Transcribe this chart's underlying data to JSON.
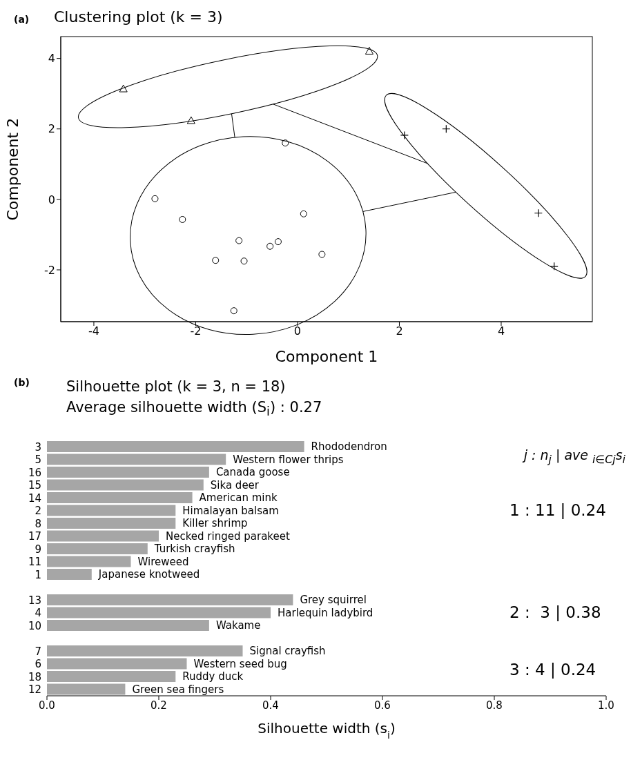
{
  "chart_data": [
    {
      "type": "scatter",
      "title": "Clustering plot (k = 3)",
      "xlabel": "Component 1",
      "ylabel": "Component 2",
      "annotations": [
        "(a)"
      ],
      "xlim": [
        -4.65,
        5.79
      ],
      "ylim": [
        -3.47,
        4.62
      ],
      "xticks": [
        -4,
        -2,
        0,
        2,
        4
      ],
      "yticks": [
        -2,
        0,
        2,
        4
      ],
      "grid": false,
      "legend": false,
      "series": [
        {
          "color": "#000000",
          "marker": "triangle",
          "x": [
            -3.42,
            -2.09,
            1.41
          ],
          "values": [
            3.14,
            2.24,
            4.21
          ]
        },
        {
          "color": "#000000",
          "marker": "cross",
          "x": [
            2.1,
            2.92,
            4.73,
            5.04
          ],
          "values": [
            1.82,
            2.0,
            -0.39,
            -1.9
          ]
        },
        {
          "color": "#000000",
          "marker": "circle",
          "x": [
            -2.8,
            -2.26,
            -0.24,
            0.12,
            -1.15,
            -1.61,
            -1.05,
            -0.54,
            -0.38,
            0.48,
            -1.25
          ],
          "values": [
            0.02,
            -0.57,
            1.6,
            -0.41,
            -1.17,
            -1.73,
            -1.75,
            -1.33,
            -1.2,
            -1.56,
            -3.16
          ]
        }
      ]
    },
    {
      "type": "bar",
      "orientation": "horizontal",
      "title": "Silhouette plot (k = 3, n = 18)",
      "subtitle": "Average silhouette width (S$_{i}$) : 0.27",
      "xlabel": "Silhouette width (s$_{i}$)",
      "categories": [
        "3",
        "5",
        "16",
        "15",
        "14",
        "2",
        "8",
        "17",
        "9",
        "11",
        "1",
        null,
        "13",
        "4",
        "10",
        null,
        "7",
        "6",
        "18",
        "12"
      ],
      "values": [
        0.46,
        0.32,
        0.29,
        0.28,
        0.26,
        0.23,
        0.23,
        0.2,
        0.18,
        0.15,
        0.08,
        null,
        0.44,
        0.4,
        0.29,
        null,
        0.35,
        0.25,
        0.23,
        0.14
      ],
      "color": "#a6a6a6",
      "xlim": [
        0,
        1
      ],
      "xticks": [
        {
          "value": 0,
          "label": "0.0"
        },
        0.2,
        0.4,
        0.6,
        0.8,
        {
          "value": 1,
          "label": "1.0"
        }
      ],
      "grid": false,
      "legend": false,
      "annotations": [
        "(b)",
        "j : n$_{j}$ | ave $_{i∈Cj}$s$_{i}$",
        "1 : 11 | 0.24",
        "2 :  3 | 0.38",
        "3 : 4 | 0.24",
        {
          "text": "Rhododendron",
          "x": 0.46,
          "y": "3"
        },
        {
          "text": "Western flower thrips",
          "x": 0.32,
          "y": "5"
        },
        {
          "text": "Canada goose",
          "x": 0.29,
          "y": "16"
        },
        {
          "text": "Sika deer",
          "x": 0.28,
          "y": "15"
        },
        {
          "text": "American mink",
          "x": 0.26,
          "y": "14"
        },
        {
          "text": "Himalayan balsam",
          "x": 0.23,
          "y": "2"
        },
        {
          "text": "Killer shrimp",
          "x": 0.23,
          "y": "8"
        },
        {
          "text": "Necked ringed parakeet",
          "x": 0.2,
          "y": "17"
        },
        {
          "text": "Turkish crayfish",
          "x": 0.18,
          "y": "9"
        },
        {
          "text": "Wireweed",
          "x": 0.15,
          "y": "11"
        },
        {
          "text": "Japanese knotweed",
          "x": 0.08,
          "y": "1"
        },
        {
          "text": "Grey squirrel",
          "x": 0.44,
          "y": "13"
        },
        {
          "text": "Harlequin ladybird",
          "x": 0.4,
          "y": "4"
        },
        {
          "text": "Wakame",
          "x": 0.29,
          "y": "10"
        },
        {
          "text": "Signal crayfish",
          "x": 0.35,
          "y": "7"
        },
        {
          "text": "Western seed bug",
          "x": 0.25,
          "y": "6"
        },
        {
          "text": "Ruddy duck",
          "x": 0.23,
          "y": "18"
        },
        {
          "text": "Green sea fingers",
          "x": 0.14,
          "y": "12"
        }
      ]
    }
  ]
}
